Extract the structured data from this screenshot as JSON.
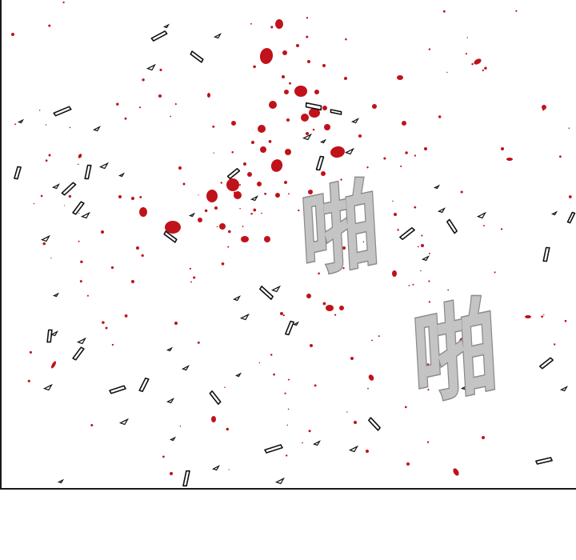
{
  "comic_panel": {
    "sound_effects": [
      {
        "text": "啪"
      },
      {
        "text": "啪"
      }
    ],
    "colors": {
      "blood": "#c0121a",
      "glass_outline": "#111111",
      "glass_fill": "#ffffff",
      "sfx_fill": "#c4c4c4",
      "sfx_outline": "#8a8a8a"
    }
  }
}
